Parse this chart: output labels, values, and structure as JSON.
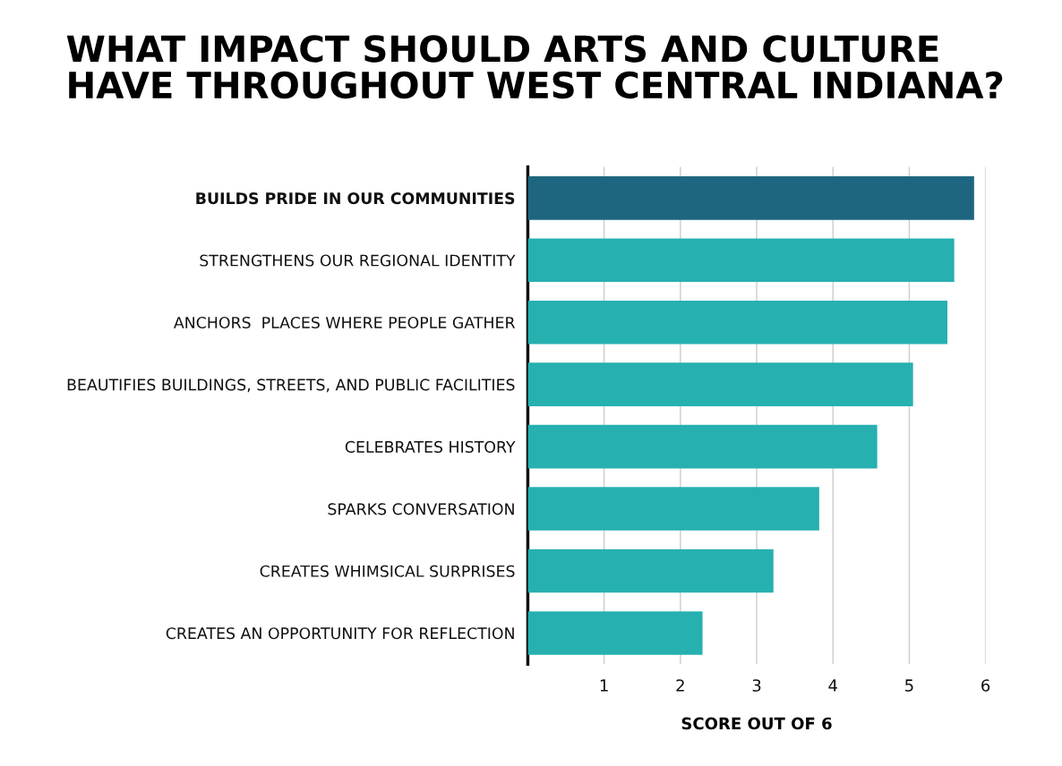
{
  "chart_data": {
    "type": "bar",
    "orientation": "horizontal",
    "title": "WHAT IMPACT SHOULD ARTS AND CULTURE\nHAVE THROUGHOUT WEST CENTRAL INDIANA?",
    "xlabel": "SCORE OUT OF 6",
    "categories": [
      "BUILDS PRIDE IN OUR COMMUNITIES",
      "STRENGTHENS OUR REGIONAL IDENTITY",
      "ANCHORS  PLACES WHERE PEOPLE GATHER",
      "BEAUTIFIES BUILDINGS, STREETS, AND PUBLIC FACILITIES",
      "CELEBRATES HISTORY",
      "SPARKS CONVERSATION",
      "CREATES WHIMSICAL SURPRISES",
      "CREATES AN OPPORTUNITY FOR REFLECTION"
    ],
    "values": [
      5.85,
      5.59,
      5.5,
      5.05,
      4.58,
      3.82,
      3.22,
      2.29
    ],
    "colors": [
      "#1e6680",
      "#26b0b0",
      "#26b0b0",
      "#26b0b0",
      "#26b0b0",
      "#26b0b0",
      "#26b0b0",
      "#26b0b0"
    ],
    "xlim": [
      0,
      6
    ],
    "xticks": [
      1,
      2,
      3,
      4,
      5,
      6
    ],
    "grid": "x"
  }
}
